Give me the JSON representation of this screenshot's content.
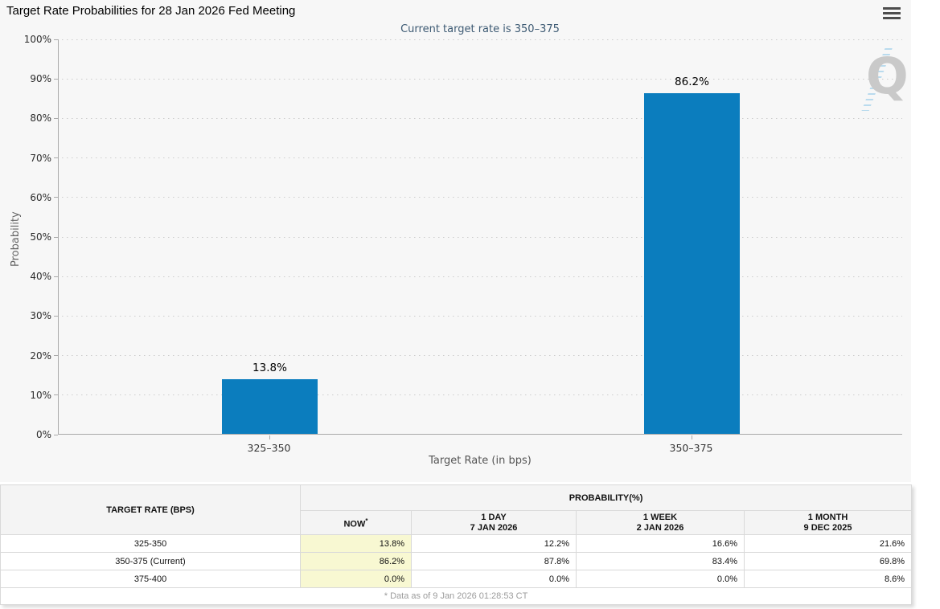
{
  "header": {
    "title": "Target Rate Probabilities for 28 Jan 2026 Fed Meeting",
    "menu_icon": "hamburger-icon"
  },
  "colors": {
    "bar": "#0b7dbe",
    "subtitle_text": "#3d5a73",
    "now_highlight": "#f8f8d2",
    "panel_background": "#f7f7f7"
  },
  "chart_data": {
    "type": "bar",
    "title": "Current target rate is 350–375",
    "categories": [
      "325–350",
      "350–375"
    ],
    "values": [
      13.8,
      86.2
    ],
    "bar_labels": [
      "13.8%",
      "86.2%"
    ],
    "xlabel": "Target Rate (in bps)",
    "ylabel": "Probability",
    "ylim": [
      0,
      100
    ],
    "y_ticks": [
      "0%",
      "10%",
      "20%",
      "30%",
      "40%",
      "50%",
      "60%",
      "70%",
      "80%",
      "90%",
      "100%"
    ],
    "grid": "horizontal-dotted",
    "legend": "none",
    "bar_color": "#0b7dbe",
    "watermark_letter": "Q"
  },
  "table": {
    "corner_header": "TARGET RATE (BPS)",
    "group_header": "PROBABILITY(%)",
    "sub_headers": [
      {
        "line1": "NOW",
        "sup": "*",
        "line2": ""
      },
      {
        "line1": "1 DAY",
        "sup": "",
        "line2": "7 JAN 2026"
      },
      {
        "line1": "1 WEEK",
        "sup": "",
        "line2": "2 JAN 2026"
      },
      {
        "line1": "1 MONTH",
        "sup": "",
        "line2": "9 DEC 2025"
      }
    ],
    "rows": [
      {
        "label": "325-350",
        "values": [
          "13.8%",
          "12.2%",
          "16.6%",
          "21.6%"
        ]
      },
      {
        "label": "350-375 (Current)",
        "values": [
          "86.2%",
          "87.8%",
          "83.4%",
          "69.8%"
        ]
      },
      {
        "label": "375-400",
        "values": [
          "0.0%",
          "0.0%",
          "0.0%",
          "8.6%"
        ]
      }
    ],
    "footnote": "* Data as of 9 Jan 2026 01:28:53 CT"
  }
}
